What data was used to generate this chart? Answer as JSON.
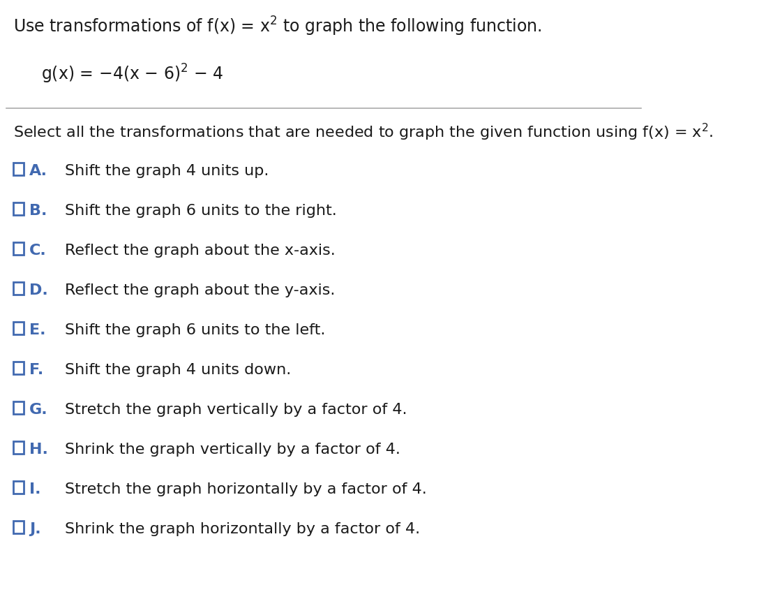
{
  "background_color": "#ffffff",
  "title_line1": "Use transformations of f(x) = x² to graph the following function.",
  "function_line": "g(x) = −4(x − 6)² − 4",
  "select_line": "Select all the transformations that are needed to graph the given function using f(x) = x².",
  "options": [
    {
      "label": "A.",
      "text": "Shift the graph 4 units up."
    },
    {
      "label": "B.",
      "text": "Shift the graph 6 units to the right."
    },
    {
      "label": "C.",
      "text": "Reflect the graph about the x-axis."
    },
    {
      "label": "D.",
      "text": "Reflect the graph about the y-axis."
    },
    {
      "label": "E.",
      "text": "Shift the graph 6 units to the left."
    },
    {
      "label": "F.",
      "text": "Shift the graph 4 units down."
    },
    {
      "label": "G.",
      "text": "Stretch the graph vertically by a factor of 4."
    },
    {
      "label": "H.",
      "text": "Shrink the graph vertically by a factor of 4."
    },
    {
      "label": "I.",
      "text": "Stretch the graph horizontally by a factor of 4."
    },
    {
      "label": "J.",
      "text": "Shrink the graph horizontally by a factor of 4."
    }
  ],
  "checkbox_color": "#4169b0",
  "label_color": "#4169b0",
  "text_color": "#1a1a1a",
  "header_text_color": "#1a1a1a",
  "select_text_color": "#1a1a1a",
  "font_size_title": 17,
  "font_size_function": 17,
  "font_size_select": 16,
  "font_size_option": 16,
  "font_size_label": 16
}
